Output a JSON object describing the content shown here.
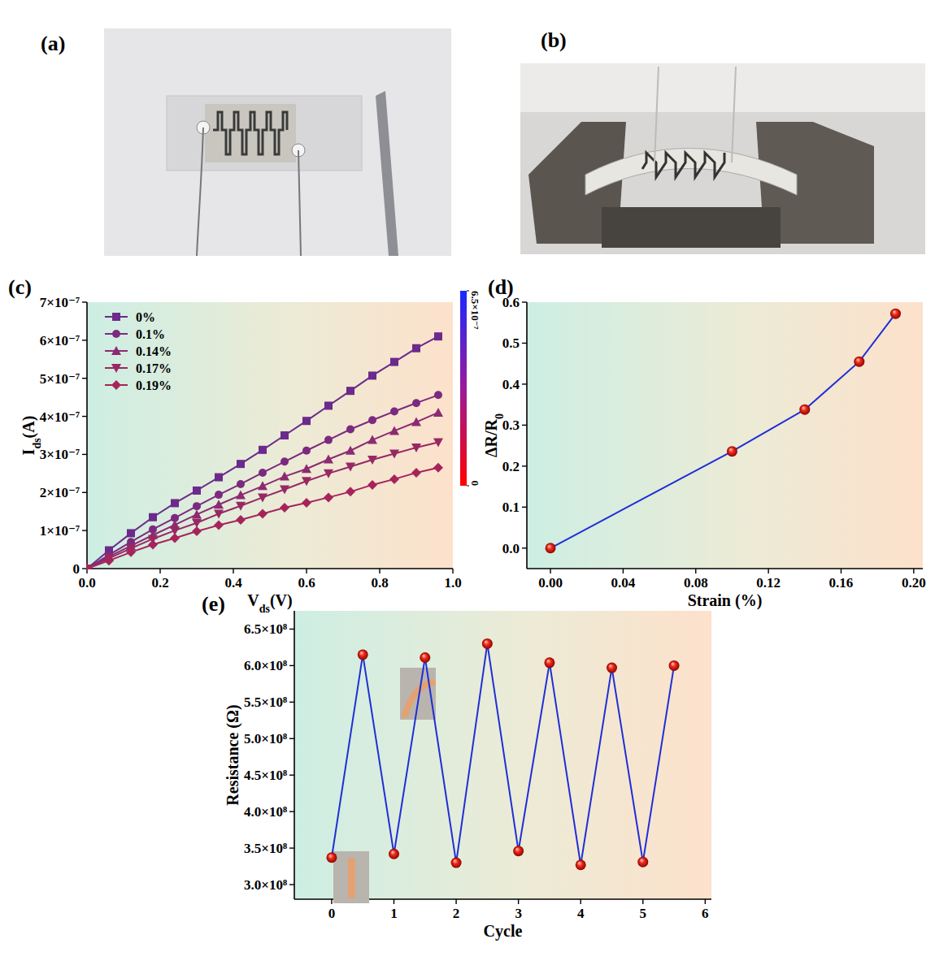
{
  "photos": [
    {
      "panel": "(a)"
    },
    {
      "panel": "(b)"
    }
  ],
  "chart_data": [
    {
      "type": "line",
      "panel": "(c)",
      "xlabel": [
        {
          "text": "V"
        },
        {
          "text": "ds",
          "sub": true
        },
        {
          "text": "(V)"
        }
      ],
      "ylabel": [
        {
          "text": "I"
        },
        {
          "text": "ds",
          "sub": true
        },
        {
          "text": "(A)"
        }
      ],
      "x": [
        0,
        0.06,
        0.12,
        0.18,
        0.24,
        0.3,
        0.36,
        0.42,
        0.48,
        0.54,
        0.6,
        0.66,
        0.72,
        0.78,
        0.84,
        0.9,
        0.96
      ],
      "series": [
        {
          "name": "0%",
          "color": "#6b2a8c",
          "marker": "square",
          "values": [
            0,
            4.8e-08,
            9.3e-08,
            1.35e-07,
            1.72e-07,
            2.05e-07,
            2.4e-07,
            2.75e-07,
            3.12e-07,
            3.5e-07,
            3.88e-07,
            4.28e-07,
            4.67e-07,
            5.07e-07,
            5.43e-07,
            5.79e-07,
            6.1e-07
          ]
        },
        {
          "name": "0.1%",
          "color": "#7c2a80",
          "marker": "circle",
          "values": [
            0,
            3.6e-08,
            7e-08,
            1.03e-07,
            1.33e-07,
            1.64e-07,
            1.94e-07,
            2.22e-07,
            2.52e-07,
            2.81e-07,
            3.1e-07,
            3.38e-07,
            3.66e-07,
            3.9e-07,
            4.13e-07,
            4.35e-07,
            4.56e-07
          ]
        },
        {
          "name": "0.14%",
          "color": "#8c2a72",
          "marker": "triangle",
          "values": [
            0,
            3.1e-08,
            6e-08,
            8.8e-08,
            1.15e-07,
            1.42e-07,
            1.68e-07,
            1.93e-07,
            2.17e-07,
            2.42e-07,
            2.62e-07,
            2.87e-07,
            3.1e-07,
            3.38e-07,
            3.62e-07,
            3.85e-07,
            4.1e-07
          ]
        },
        {
          "name": "0.17%",
          "color": "#982864",
          "marker": "triangle-down",
          "values": [
            0,
            2.7e-08,
            5.3e-08,
            7.8e-08,
            1e-07,
            1.2e-07,
            1.44e-07,
            1.65e-07,
            1.87e-07,
            2.08e-07,
            2.3e-07,
            2.5e-07,
            2.68e-07,
            2.86e-07,
            3.02e-07,
            3.18e-07,
            3.32e-07
          ]
        },
        {
          "name": "0.19%",
          "color": "#a6245a",
          "marker": "diamond",
          "values": [
            0,
            2.1e-08,
            4.3e-08,
            6.3e-08,
            8e-08,
            9.8e-08,
            1.14e-07,
            1.28e-07,
            1.44e-07,
            1.6e-07,
            1.73e-07,
            1.87e-07,
            2.02e-07,
            2.2e-07,
            2.35e-07,
            2.52e-07,
            2.65e-07
          ]
        }
      ],
      "xlim": [
        0,
        1
      ],
      "ylim": [
        0,
        7e-07
      ],
      "xticks": [
        {
          "value": 0,
          "label": "0.0"
        },
        0.2,
        0.4,
        0.6,
        0.8,
        {
          "value": 1,
          "label": "1.0"
        }
      ],
      "yticks": [
        0,
        {
          "value": 1e-07,
          "label": "1×10⁻⁷"
        },
        {
          "value": 2e-07,
          "label": "2×10⁻⁷"
        },
        {
          "value": 3e-07,
          "label": "3×10⁻⁷"
        },
        {
          "value": 4e-07,
          "label": "4×10⁻⁷"
        },
        {
          "value": 5e-07,
          "label": "5×10⁻⁷"
        },
        {
          "value": 6e-07,
          "label": "6×10⁻⁷"
        },
        {
          "value": 7e-07,
          "label": "7×10⁻⁷"
        }
      ],
      "legend": "upper left",
      "colorbar": {
        "range": [
          0,
          6.5e-07
        ],
        "ticks": [
          {
            "value": 0,
            "label": "0"
          },
          {
            "value": 6.5e-07,
            "label": "6.5×10⁻⁷"
          }
        ]
      }
    },
    {
      "type": "line",
      "panel": "(d)",
      "xlabel": [
        {
          "text": "Strain (%)"
        }
      ],
      "ylabel": [
        {
          "text": "ΔR/R"
        },
        {
          "text": "0",
          "sub": true
        }
      ],
      "x": [
        0,
        0.1,
        0.14,
        0.17,
        0.19
      ],
      "series": [
        {
          "color": "#1f2fd6",
          "marker": "sphere",
          "values": [
            0,
            0.236,
            0.338,
            0.455,
            0.572
          ]
        }
      ],
      "xlim": [
        -0.013,
        0.205
      ],
      "ylim": [
        -0.05,
        0.6
      ],
      "xticks": [
        {
          "value": 0,
          "label": "0.00"
        },
        0.04,
        0.08,
        0.12,
        0.16,
        {
          "value": 0.2,
          "label": "0.20"
        }
      ],
      "yticks": [
        {
          "value": 0,
          "label": "0.0"
        },
        0.1,
        0.2,
        0.3,
        0.4,
        0.5,
        0.6
      ]
    },
    {
      "type": "line",
      "panel": "(e)",
      "xlabel": [
        {
          "text": "Cycle"
        }
      ],
      "ylabel": [
        {
          "text": "Resistance (Ω)"
        }
      ],
      "x": [
        0,
        0.5,
        1,
        1.5,
        2,
        2.5,
        3,
        3.5,
        4,
        4.5,
        5,
        5.5
      ],
      "series": [
        {
          "color": "#1f2fd6",
          "marker": "sphere",
          "values": [
            337000000.0,
            615000000.0,
            342000000.0,
            611000000.0,
            330000000.0,
            630000000.0,
            346000000.0,
            604000000.0,
            327000000.0,
            597000000.0,
            331000000.0,
            600000000.0
          ]
        }
      ],
      "xlim": [
        -0.6,
        6.1
      ],
      "ylim": [
        280000000.0,
        675000000.0
      ],
      "xticks": [
        0,
        1,
        2,
        3,
        4,
        5,
        6
      ],
      "yticks": [
        {
          "value": 300000000.0,
          "label": "3.0×10⁸"
        },
        {
          "value": 350000000.0,
          "label": "3.5×10⁸"
        },
        {
          "value": 400000000.0,
          "label": "4.0×10⁸"
        },
        {
          "value": 450000000.0,
          "label": "4.5×10⁸"
        },
        {
          "value": 500000000.0,
          "label": "5.0×10⁸"
        },
        {
          "value": 550000000.0,
          "label": "5.5×10⁸"
        },
        {
          "value": 600000000.0,
          "label": "6.0×10⁸"
        },
        {
          "value": 650000000.0,
          "label": "6.5×10⁸"
        }
      ]
    }
  ]
}
